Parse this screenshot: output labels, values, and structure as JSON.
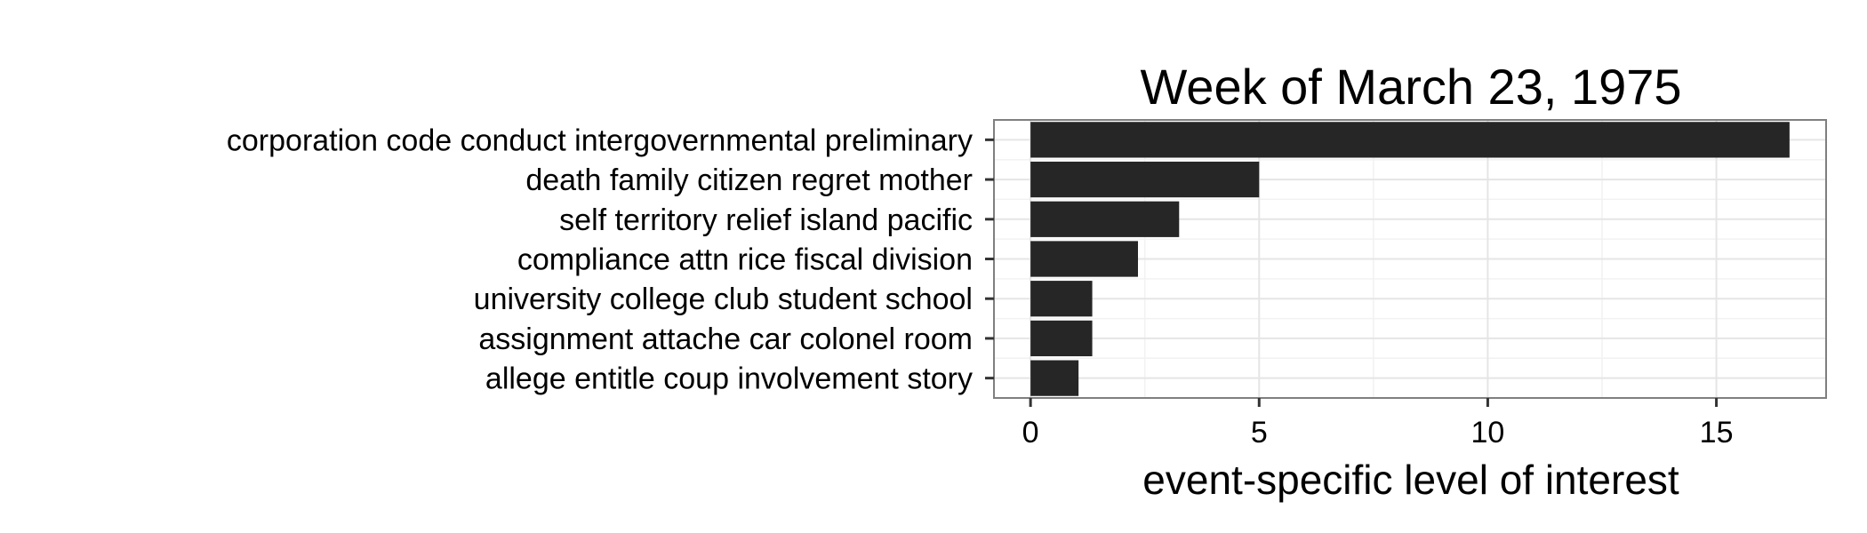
{
  "chart_data": {
    "type": "bar",
    "orientation": "horizontal",
    "title": "Week of March 23, 1975",
    "xlabel": "event-specific level of interest",
    "ylabel": "",
    "categories": [
      "corporation code conduct intergovernmental preliminary",
      "death family citizen regret mother",
      "self territory relief island pacific",
      "compliance attn rice fiscal division",
      "university college club student school",
      "assignment attache car colonel room",
      "allege entitle coup involvement story"
    ],
    "values": [
      16.6,
      5.0,
      3.25,
      2.35,
      1.35,
      1.35,
      1.05
    ],
    "xlim": [
      -0.8,
      17.4
    ],
    "xticks": [
      0,
      5,
      10,
      15
    ],
    "xtick_labels": [
      "0",
      "5",
      "10",
      "15"
    ],
    "grid": true,
    "legend": "none",
    "colors": {
      "bar": "#262626",
      "panel_border": "#7f7f7f",
      "grid_major": "#e5e5e5",
      "grid_minor": "#f2f2f2",
      "tick": "#333333"
    }
  }
}
